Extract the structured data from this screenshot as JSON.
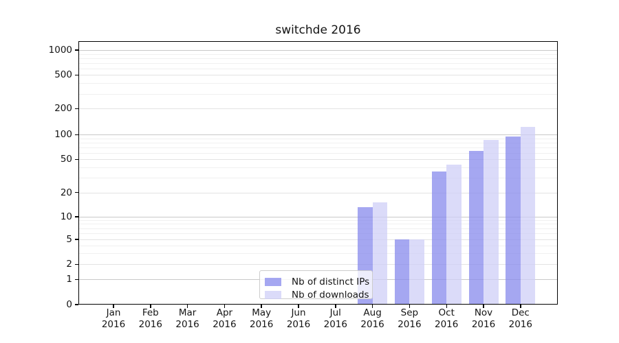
{
  "chart_data": {
    "type": "bar",
    "title": "switchde 2016",
    "categories": [
      "Jan",
      "Feb",
      "Mar",
      "Apr",
      "May",
      "Jun",
      "Jul",
      "Aug",
      "Sep",
      "Oct",
      "Nov",
      "Dec"
    ],
    "x_tick_second_line": "2016",
    "series": [
      {
        "name": "Nb of distinct IPs",
        "color": "#8789ec",
        "values": [
          0,
          0,
          0,
          0,
          0,
          0,
          0,
          13,
          5,
          36,
          63,
          95
        ]
      },
      {
        "name": "Nb of downloads",
        "color": "#cfcff7",
        "values": [
          0,
          0,
          0,
          0,
          0,
          0,
          0,
          15,
          5,
          43,
          87,
          123
        ]
      }
    ],
    "yticks": [
      0,
      1,
      2,
      5,
      10,
      20,
      50,
      100,
      200,
      500,
      1000
    ],
    "yscale": "symlog",
    "ylim": [
      0,
      1300
    ],
    "xlabel": "",
    "ylabel": "",
    "grid": "horizontal",
    "legend_position": "inside lower-center"
  }
}
